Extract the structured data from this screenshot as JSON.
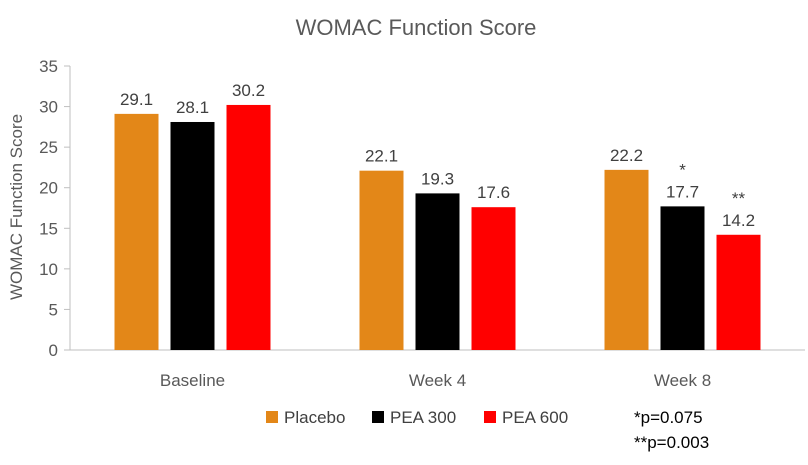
{
  "chart_data": {
    "type": "bar",
    "title": "WOMAC Function Score",
    "xlabel": "",
    "ylabel": "WOMAC Function  Score",
    "ylim": [
      0,
      35
    ],
    "yticks": [
      0,
      5,
      10,
      15,
      20,
      25,
      30,
      35
    ],
    "categories": [
      "Baseline",
      "Week 4",
      "Week 8"
    ],
    "series": [
      {
        "name": "Placebo",
        "color": "#E38718",
        "values": [
          29.1,
          22.1,
          22.2
        ],
        "labels": [
          "29.1",
          "22.1",
          "22.2"
        ],
        "annotations": [
          "",
          "",
          ""
        ]
      },
      {
        "name": "PEA 300",
        "color": "#000000",
        "values": [
          28.1,
          19.3,
          17.7
        ],
        "labels": [
          "28.1",
          "19.3",
          "17.7"
        ],
        "annotations": [
          "",
          "",
          "*"
        ]
      },
      {
        "name": "PEA 600",
        "color": "#FF0000",
        "values": [
          30.2,
          17.6,
          14.2
        ],
        "labels": [
          "30.2",
          "17.6",
          "14.2"
        ],
        "annotations": [
          "",
          "",
          "**"
        ]
      }
    ],
    "grid": false,
    "legend": "bottom"
  },
  "footnotes": [
    "*p=0.075",
    "**p=0.003"
  ]
}
